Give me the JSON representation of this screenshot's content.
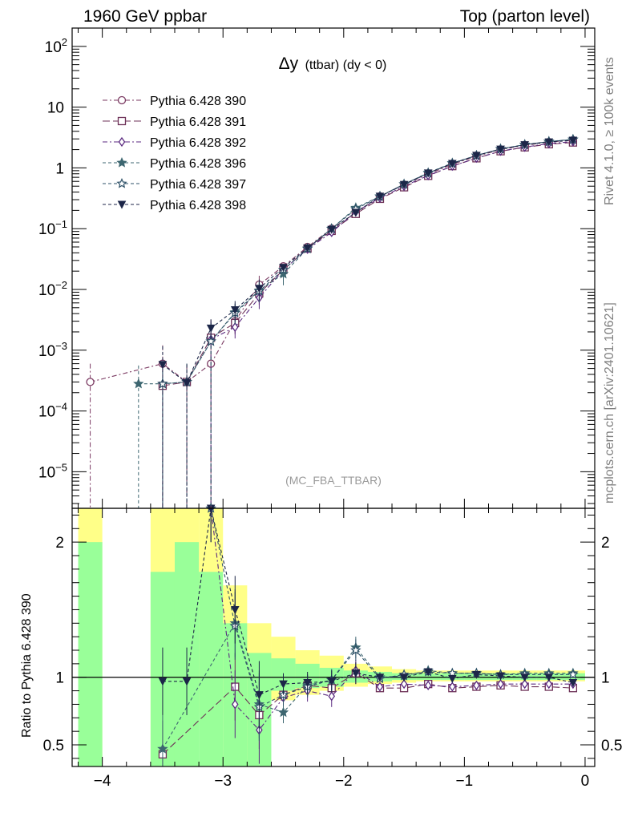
{
  "header": {
    "left": "1960 GeV ppbar",
    "right": "Top (parton level)",
    "side_right_top": "Rivet 4.1.0, ≥ 100k events",
    "side_right_bottom": "mcplots.cern.ch [arXiv:2401.10621]"
  },
  "colors": {
    "p390": "#7b3a62",
    "p391": "#6d3157",
    "p392": "#5b2a80",
    "p396": "#3d6670",
    "p397": "#2e5168",
    "p398": "#1c2648",
    "band_green": "#99ff99",
    "band_yellow": "#ffff88"
  },
  "chart_data": {
    "type": "line",
    "title": "Δy (ttbar) (dy < 0)",
    "title_main": "Δy",
    "title_sub": "(ttbar) (dy < 0)",
    "watermark": "(MC_FBA_TTBAR)",
    "xlabel": "",
    "ylabel": "",
    "xlim": [
      -4.25,
      0.08
    ],
    "ylim": [
      2.5e-06,
      200
    ],
    "yscale": "log",
    "x_ticks": [
      "−4",
      "−3",
      "−2",
      "−1",
      "0"
    ],
    "y_ticks": [
      "10^2",
      "10",
      "1",
      "10^-1",
      "10^-2",
      "10^-3",
      "10^-4",
      "10^-5"
    ],
    "legend_position": "top-left",
    "x": [
      -4.1,
      -3.9,
      -3.7,
      -3.5,
      -3.3,
      -3.1,
      -2.9,
      -2.7,
      -2.5,
      -2.3,
      -2.1,
      -1.9,
      -1.7,
      -1.5,
      -1.3,
      -1.1,
      -0.9,
      -0.7,
      -0.5,
      -0.3,
      -0.1
    ],
    "series": [
      {
        "name": "Pythia 6.428 390",
        "marker": "circle-open",
        "values": [
          0.0003,
          null,
          null,
          0.0006,
          0.0003,
          0.0006,
          0.003,
          0.012,
          0.024,
          0.05,
          0.1,
          0.18,
          0.34,
          0.53,
          0.79,
          1.15,
          1.55,
          2.0,
          2.35,
          2.65,
          2.85
        ]
      },
      {
        "name": "Pythia 6.428 391",
        "marker": "square-open",
        "values": [
          null,
          null,
          null,
          0.00026,
          0.0003,
          0.0016,
          0.0028,
          0.0086,
          0.021,
          0.047,
          0.092,
          0.175,
          0.31,
          0.48,
          0.74,
          1.07,
          1.44,
          1.88,
          2.18,
          2.45,
          2.62
        ]
      },
      {
        "name": "Pythia 6.428 392",
        "marker": "diamond-open",
        "values": [
          null,
          null,
          null,
          null,
          null,
          0.0015,
          0.0024,
          0.0073,
          0.021,
          0.046,
          0.087,
          0.19,
          0.32,
          0.5,
          0.75,
          1.07,
          1.45,
          1.89,
          2.2,
          2.51,
          2.71
        ]
      },
      {
        "name": "Pythia 6.428 396",
        "marker": "star-filled",
        "values": [
          null,
          null,
          0.00028,
          0.00028,
          0.0003,
          0.0014,
          0.0042,
          0.0096,
          0.018,
          0.047,
          0.1,
          0.22,
          0.34,
          0.54,
          0.83,
          1.2,
          1.6,
          2.05,
          2.42,
          2.72,
          2.95
        ]
      },
      {
        "name": "Pythia 6.428 397",
        "marker": "star-open",
        "values": [
          null,
          null,
          null,
          0.00028,
          0.0003,
          0.0014,
          0.0041,
          0.0094,
          0.021,
          0.047,
          0.1,
          0.21,
          0.34,
          0.54,
          0.82,
          1.19,
          1.6,
          2.05,
          2.41,
          2.71,
          2.93
        ]
      },
      {
        "name": "Pythia 6.428 398",
        "marker": "triangle-down-filled",
        "values": [
          null,
          null,
          null,
          0.00058,
          0.00029,
          0.0023,
          0.0046,
          0.0104,
          0.023,
          0.048,
          0.097,
          0.185,
          0.34,
          0.53,
          0.82,
          1.18,
          1.6,
          2.03,
          2.4,
          2.67,
          2.84
        ]
      }
    ],
    "ratio": {
      "ylabel": "Ratio to Pythia 6.428 390",
      "ylim": [
        0.34,
        2.25
      ],
      "y_ticks": [
        "2",
        "1",
        "0.5"
      ],
      "reference": 1,
      "band_edges": [
        -4.2,
        -4.0,
        -3.8,
        -3.6,
        -3.4,
        -3.2,
        -3.0,
        -2.8,
        -2.6,
        -2.4,
        -2.2,
        -2.0,
        -1.8,
        -1.6,
        -1.4,
        -1.2,
        -1.0,
        -0.8,
        -0.6,
        -0.4,
        -0.2,
        0.0
      ],
      "band_green": [
        [
          0.1,
          2.0
        ],
        null,
        null,
        [
          0.1,
          1.78
        ],
        [
          0.1,
          2.0
        ],
        [
          0.1,
          1.78
        ],
        [
          0.1,
          1.4
        ],
        [
          0.1,
          1.18
        ],
        [
          0.9,
          1.14
        ],
        [
          0.92,
          1.1
        ],
        [
          0.93,
          1.07
        ],
        [
          0.96,
          1.05
        ],
        [
          0.97,
          1.04
        ],
        [
          0.98,
          1.03
        ],
        [
          0.98,
          1.03
        ],
        [
          0.98,
          1.03
        ],
        [
          0.98,
          1.03
        ],
        [
          0.98,
          1.03
        ],
        [
          0.98,
          1.03
        ],
        [
          0.98,
          1.03
        ],
        [
          0.98,
          1.03
        ]
      ],
      "band_yellow": [
        [
          0.1,
          2.4
        ],
        null,
        null,
        [
          0.1,
          2.4
        ],
        [
          0.1,
          2.4
        ],
        [
          0.74,
          2.4
        ],
        [
          0.1,
          1.68
        ],
        [
          0.8,
          1.4
        ],
        [
          0.83,
          1.3
        ],
        [
          0.87,
          1.2
        ],
        [
          0.9,
          1.16
        ],
        [
          0.93,
          1.1
        ],
        [
          0.95,
          1.08
        ],
        [
          0.96,
          1.06
        ],
        [
          0.97,
          1.05
        ],
        [
          0.97,
          1.05
        ],
        [
          0.97,
          1.05
        ],
        [
          0.97,
          1.05
        ],
        [
          0.97,
          1.05
        ],
        [
          0.97,
          1.05
        ],
        [
          0.97,
          1.05
        ]
      ],
      "series": [
        {
          "name": "Pythia 6.428 391",
          "values": [
            null,
            null,
            null,
            0.43,
            null,
            null,
            0.93,
            0.72,
            0.87,
            0.94,
            0.92,
            1.03,
            0.92,
            0.92,
            0.95,
            0.92,
            0.93,
            0.94,
            0.93,
            0.93,
            0.92
          ]
        },
        {
          "name": "Pythia 6.428 392",
          "values": [
            null,
            null,
            null,
            null,
            null,
            2.55,
            0.8,
            0.61,
            0.85,
            0.9,
            0.86,
            1.05,
            0.93,
            0.95,
            0.94,
            0.93,
            0.94,
            0.95,
            0.95,
            0.95,
            0.95
          ]
        },
        {
          "name": "Pythia 6.428 396",
          "values": [
            null,
            null,
            null,
            0.47,
            null,
            null,
            1.4,
            0.8,
            0.74,
            0.94,
            0.98,
            1.22,
            1.0,
            1.01,
            1.05,
            1.03,
            1.03,
            1.02,
            1.03,
            1.03,
            1.03
          ]
        },
        {
          "name": "Pythia 6.428 397",
          "values": [
            null,
            null,
            null,
            null,
            null,
            2.45,
            1.38,
            0.78,
            0.87,
            0.93,
            0.98,
            1.2,
            0.99,
            1.02,
            1.04,
            1.03,
            1.03,
            1.02,
            1.02,
            1.02,
            1.02
          ]
        },
        {
          "name": "Pythia 6.428 398",
          "values": [
            null,
            null,
            null,
            0.97,
            0.97,
            2.6,
            1.5,
            0.87,
            0.95,
            0.96,
            0.97,
            1.03,
            1.0,
            1.0,
            1.04,
            0.99,
            1.02,
            1.01,
            1.0,
            1.0,
            0.96
          ]
        }
      ]
    }
  }
}
